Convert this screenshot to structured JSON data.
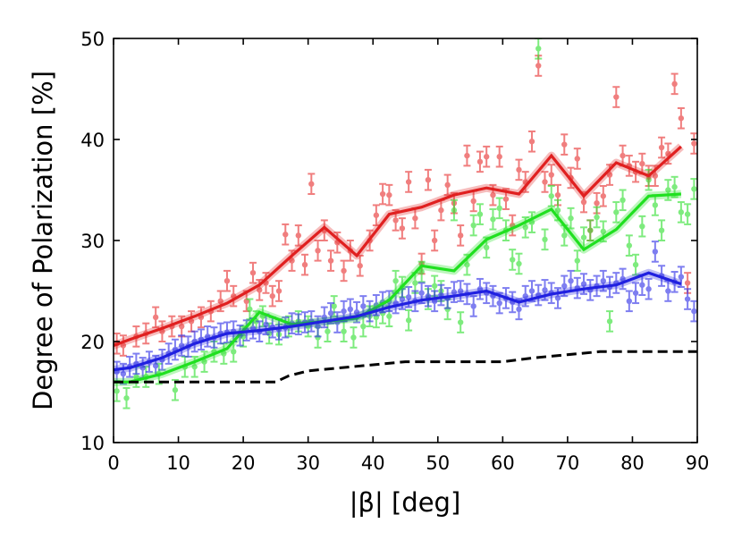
{
  "chart_data": {
    "type": "line",
    "title": "",
    "xlabel": "|β| [deg]",
    "ylabel": "Degree of Polarization [%]",
    "xlim": [
      0,
      90
    ],
    "ylim": [
      10,
      50
    ],
    "xticks": [
      "0",
      "10",
      "20",
      "30",
      "40",
      "50",
      "60",
      "70",
      "80",
      "90"
    ],
    "yticks": [
      "10",
      "20",
      "30",
      "40",
      "50"
    ],
    "grid": false,
    "legend": "none",
    "series": [
      {
        "color": "#e02020",
        "style": "solid",
        "x": [
          0,
          2.5,
          7.5,
          12.5,
          17.5,
          22.5,
          27.5,
          32.5,
          37.5,
          42.5,
          47.5,
          52.5,
          57.5,
          62.5,
          67.5,
          72.5,
          77.5,
          82.5,
          87.5
        ],
        "y": [
          19.6,
          20.2,
          21.3,
          22.5,
          23.8,
          25.6,
          28.5,
          31.3,
          28.5,
          32.6,
          33.3,
          34.5,
          35.2,
          34.6,
          38.4,
          34.4,
          37.7,
          36.4,
          39.3
        ]
      },
      {
        "color": "#20e020",
        "style": "solid",
        "x": [
          0,
          2.5,
          7.5,
          12.5,
          17.5,
          22.5,
          27.5,
          32.5,
          37.5,
          42.5,
          47.5,
          52.5,
          57.5,
          62.5,
          67.5,
          72.5,
          77.5,
          82.5,
          87.5
        ],
        "y": [
          16.0,
          16.0,
          16.8,
          18.0,
          19.3,
          22.9,
          21.7,
          22.0,
          22.3,
          24.1,
          27.5,
          27.0,
          30.1,
          31.5,
          33.1,
          29.1,
          31.1,
          34.4,
          34.6
        ]
      },
      {
        "color": "#2020e0",
        "style": "solid",
        "x": [
          0,
          2.5,
          7.5,
          12.5,
          17.5,
          22.5,
          27.5,
          32.5,
          37.5,
          42.5,
          47.5,
          52.5,
          57.5,
          62.5,
          67.5,
          72.5,
          77.5,
          82.5,
          87.5
        ],
        "y": [
          17.2,
          17.4,
          18.4,
          19.8,
          20.8,
          21.1,
          21.5,
          22.0,
          22.5,
          23.4,
          24.1,
          24.5,
          25.0,
          23.9,
          24.7,
          25.2,
          25.6,
          26.8,
          25.7
        ]
      },
      {
        "color": "#000000",
        "style": "dashed",
        "x": [
          0,
          25,
          27,
          30,
          35,
          45,
          60,
          65,
          75,
          90
        ],
        "y": [
          16.0,
          16.0,
          16.6,
          17.1,
          17.4,
          18.0,
          18.0,
          18.4,
          19.0,
          19.0
        ]
      }
    ],
    "scatter": [
      {
        "color": "#e83030",
        "error": 1.0,
        "points": [
          [
            0.5,
            19.8
          ],
          [
            1.5,
            19.6
          ],
          [
            3.5,
            20.5
          ],
          [
            5.0,
            20.8
          ],
          [
            6.5,
            22.4
          ],
          [
            7.5,
            21.0
          ],
          [
            9.0,
            21.5
          ],
          [
            10.5,
            21.5
          ],
          [
            12.0,
            22.0
          ],
          [
            13.5,
            22.4
          ],
          [
            15.0,
            23.0
          ],
          [
            16.5,
            24.0
          ],
          [
            17.5,
            26.0
          ],
          [
            18.5,
            24.5
          ],
          [
            20.5,
            24.0
          ],
          [
            21.5,
            26.8
          ],
          [
            22.5,
            25.1
          ],
          [
            23.5,
            25.8
          ],
          [
            24.5,
            24.5
          ],
          [
            25.5,
            25.0
          ],
          [
            26.5,
            30.6
          ],
          [
            27.5,
            28.0
          ],
          [
            28.5,
            30.5
          ],
          [
            29.5,
            27.6
          ],
          [
            30.5,
            35.6
          ],
          [
            31.5,
            29.0
          ],
          [
            32.5,
            31.0
          ],
          [
            33.5,
            28.0
          ],
          [
            34.5,
            29.8
          ],
          [
            35.5,
            27.0
          ],
          [
            36.5,
            29.0
          ],
          [
            38.0,
            27.5
          ],
          [
            39.5,
            30.0
          ],
          [
            40.5,
            32.5
          ],
          [
            41.5,
            34.6
          ],
          [
            42.5,
            34.5
          ],
          [
            43.5,
            32.0
          ],
          [
            44.5,
            31.2
          ],
          [
            45.5,
            35.8
          ],
          [
            46.5,
            32.2
          ],
          [
            47.5,
            27.7
          ],
          [
            48.5,
            36.0
          ],
          [
            49.5,
            30.0
          ],
          [
            50.5,
            33.0
          ],
          [
            51.5,
            35.5
          ],
          [
            52.5,
            33.7
          ],
          [
            53.5,
            30.5
          ],
          [
            54.5,
            38.4
          ],
          [
            55.5,
            33.9
          ],
          [
            56.5,
            37.8
          ],
          [
            57.5,
            38.3
          ],
          [
            58.5,
            34.5
          ],
          [
            59.5,
            38.3
          ],
          [
            60.5,
            34.1
          ],
          [
            61.5,
            31.5
          ],
          [
            62.5,
            37.0
          ],
          [
            63.5,
            35.8
          ],
          [
            64.5,
            39.8
          ],
          [
            65.5,
            47.3
          ],
          [
            66.5,
            35.8
          ],
          [
            67.5,
            36.5
          ],
          [
            68.5,
            34.5
          ],
          [
            69.5,
            39.5
          ],
          [
            70.5,
            36.2
          ],
          [
            71.5,
            38.1
          ],
          [
            72.5,
            33.8
          ],
          [
            73.5,
            31.0
          ],
          [
            74.5,
            33.7
          ],
          [
            75.5,
            34.4
          ],
          [
            76.5,
            36.5
          ],
          [
            77.5,
            44.2
          ],
          [
            78.5,
            38.4
          ],
          [
            79.5,
            37.4
          ],
          [
            80.5,
            36.8
          ],
          [
            81.5,
            37.6
          ],
          [
            82.5,
            36.4
          ],
          [
            83.5,
            36.4
          ],
          [
            84.5,
            39.2
          ],
          [
            85.5,
            38.6
          ],
          [
            86.5,
            45.5
          ],
          [
            87.5,
            42.1
          ],
          [
            88.5,
            25.8
          ],
          [
            89.5,
            39.6
          ]
        ]
      },
      {
        "color": "#30e030",
        "error": 1.0,
        "points": [
          [
            0.5,
            15.1
          ],
          [
            2.0,
            14.4
          ],
          [
            3.5,
            16.5
          ],
          [
            5.0,
            16.5
          ],
          [
            7.0,
            16.8
          ],
          [
            9.5,
            15.2
          ],
          [
            11.0,
            17.5
          ],
          [
            12.5,
            17.5
          ],
          [
            14.0,
            18.0
          ],
          [
            15.5,
            19.0
          ],
          [
            17.0,
            18.8
          ],
          [
            18.5,
            19.0
          ],
          [
            20.0,
            20.5
          ],
          [
            21.0,
            23.2
          ],
          [
            22.0,
            22.0
          ],
          [
            23.0,
            22.5
          ],
          [
            24.0,
            20.8
          ],
          [
            25.5,
            20.7
          ],
          [
            27.0,
            21.5
          ],
          [
            28.5,
            22.0
          ],
          [
            30.0,
            21.5
          ],
          [
            31.5,
            20.4
          ],
          [
            33.0,
            21.0
          ],
          [
            34.0,
            23.5
          ],
          [
            35.5,
            21.0
          ],
          [
            37.0,
            20.4
          ],
          [
            38.5,
            21.5
          ],
          [
            39.5,
            22.5
          ],
          [
            40.5,
            22.4
          ],
          [
            41.5,
            22.8
          ],
          [
            42.5,
            22.5
          ],
          [
            43.5,
            26.0
          ],
          [
            44.5,
            25.4
          ],
          [
            45.5,
            22.1
          ],
          [
            46.5,
            25.8
          ],
          [
            47.5,
            26.9
          ],
          [
            48.5,
            24.2
          ],
          [
            49.5,
            25.5
          ],
          [
            50.5,
            25.0
          ],
          [
            51.5,
            23.2
          ],
          [
            52.5,
            33.0
          ],
          [
            53.5,
            21.9
          ],
          [
            54.5,
            27.6
          ],
          [
            55.5,
            31.5
          ],
          [
            56.5,
            32.6
          ],
          [
            57.5,
            29.3
          ],
          [
            58.5,
            32.1
          ],
          [
            59.5,
            33.2
          ],
          [
            60.5,
            31.0
          ],
          [
            61.5,
            28.1
          ],
          [
            62.5,
            27.7
          ],
          [
            63.5,
            31.3
          ],
          [
            64.5,
            31.8
          ],
          [
            65.5,
            49.0
          ],
          [
            66.5,
            30.1
          ],
          [
            67.5,
            34.4
          ],
          [
            68.5,
            33.0
          ],
          [
            69.5,
            30.5
          ],
          [
            70.5,
            32.2
          ],
          [
            71.5,
            28.0
          ],
          [
            72.5,
            30.3
          ],
          [
            73.5,
            31.0
          ],
          [
            74.5,
            32.3
          ],
          [
            75.5,
            30.9
          ],
          [
            76.5,
            22.0
          ],
          [
            77.5,
            32.8
          ],
          [
            78.5,
            34.0
          ],
          [
            79.5,
            29.5
          ],
          [
            80.5,
            27.6
          ],
          [
            81.5,
            31.4
          ],
          [
            82.5,
            36.0
          ],
          [
            83.5,
            33.5
          ],
          [
            84.5,
            31.0
          ],
          [
            85.5,
            35.0
          ],
          [
            86.5,
            35.3
          ],
          [
            87.5,
            32.8
          ],
          [
            88.5,
            32.6
          ],
          [
            89.5,
            35.1
          ]
        ]
      },
      {
        "color": "#3030e8",
        "error": 1.0,
        "points": [
          [
            0.5,
            17.0
          ],
          [
            1.5,
            16.8
          ],
          [
            2.5,
            17.5
          ],
          [
            3.5,
            17.8
          ],
          [
            4.5,
            17.4
          ],
          [
            5.5,
            18.0
          ],
          [
            6.5,
            17.6
          ],
          [
            7.5,
            18.2
          ],
          [
            8.5,
            18.8
          ],
          [
            9.5,
            19.2
          ],
          [
            10.5,
            19.6
          ],
          [
            11.5,
            19.5
          ],
          [
            12.5,
            20.0
          ],
          [
            13.5,
            20.2
          ],
          [
            14.5,
            20.5
          ],
          [
            15.5,
            20.4
          ],
          [
            16.5,
            20.8
          ],
          [
            17.5,
            20.9
          ],
          [
            18.5,
            21.0
          ],
          [
            19.5,
            20.6
          ],
          [
            20.5,
            21.1
          ],
          [
            21.5,
            21.3
          ],
          [
            22.5,
            21.0
          ],
          [
            23.5,
            21.7
          ],
          [
            24.5,
            21.4
          ],
          [
            25.5,
            21.2
          ],
          [
            26.5,
            21.4
          ],
          [
            27.5,
            21.8
          ],
          [
            28.5,
            21.7
          ],
          [
            29.5,
            21.9
          ],
          [
            30.5,
            22.0
          ],
          [
            31.5,
            21.5
          ],
          [
            32.5,
            22.4
          ],
          [
            33.5,
            22.8
          ],
          [
            34.5,
            21.9
          ],
          [
            35.5,
            23.0
          ],
          [
            36.5,
            23.2
          ],
          [
            37.5,
            22.9
          ],
          [
            38.5,
            23.5
          ],
          [
            39.5,
            23.0
          ],
          [
            40.5,
            23.6
          ],
          [
            41.5,
            23.9
          ],
          [
            42.5,
            24.0
          ],
          [
            43.5,
            23.8
          ],
          [
            44.5,
            24.2
          ],
          [
            45.5,
            24.4
          ],
          [
            46.5,
            24.0
          ],
          [
            47.5,
            24.8
          ],
          [
            48.5,
            24.5
          ],
          [
            49.5,
            24.0
          ],
          [
            50.5,
            24.6
          ],
          [
            51.5,
            24.3
          ],
          [
            52.5,
            24.9
          ],
          [
            53.5,
            25.0
          ],
          [
            54.5,
            24.7
          ],
          [
            55.5,
            23.5
          ],
          [
            56.5,
            25.2
          ],
          [
            57.5,
            24.8
          ],
          [
            58.5,
            24.5
          ],
          [
            59.5,
            23.8
          ],
          [
            60.5,
            24.3
          ],
          [
            61.5,
            23.9
          ],
          [
            62.5,
            23.2
          ],
          [
            63.5,
            24.5
          ],
          [
            64.5,
            25.0
          ],
          [
            65.5,
            24.6
          ],
          [
            66.5,
            25.1
          ],
          [
            67.5,
            24.8
          ],
          [
            68.5,
            24.3
          ],
          [
            69.5,
            25.5
          ],
          [
            70.5,
            26.0
          ],
          [
            71.5,
            25.3
          ],
          [
            72.5,
            25.7
          ],
          [
            73.5,
            25.1
          ],
          [
            74.5,
            25.5
          ],
          [
            75.5,
            26.0
          ],
          [
            76.5,
            25.4
          ],
          [
            77.5,
            25.8
          ],
          [
            78.5,
            26.2
          ],
          [
            79.5,
            24.0
          ],
          [
            80.5,
            24.8
          ],
          [
            81.5,
            25.6
          ],
          [
            82.5,
            25.2
          ],
          [
            83.5,
            28.9
          ],
          [
            84.5,
            26.5
          ],
          [
            85.5,
            25.0
          ],
          [
            86.5,
            25.9
          ],
          [
            87.5,
            26.4
          ],
          [
            88.5,
            24.2
          ],
          [
            89.5,
            23.0
          ]
        ]
      }
    ]
  }
}
